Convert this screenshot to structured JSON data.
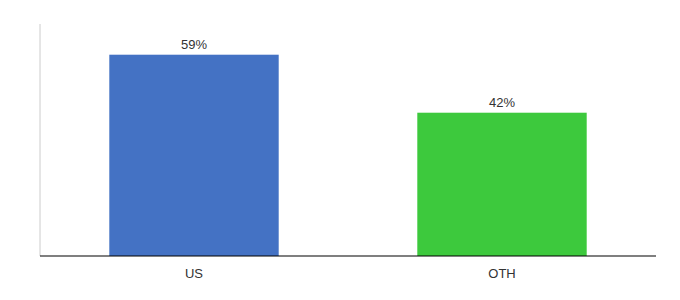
{
  "chart_data": {
    "type": "bar",
    "categories": [
      "US",
      "OTH"
    ],
    "values": [
      59,
      42
    ],
    "value_labels": [
      "59%",
      "42%"
    ],
    "colors": [
      "#4472C4",
      "#3DC93D"
    ],
    "ylim": [
      0,
      68
    ],
    "grid": false,
    "data_labels": true,
    "tick_labels": "x"
  }
}
